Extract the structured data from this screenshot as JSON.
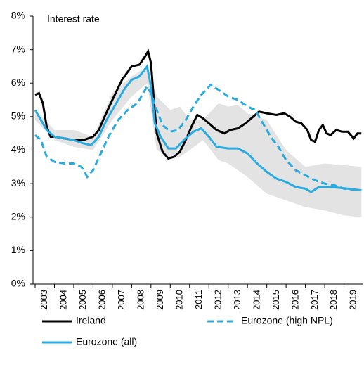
{
  "chart_data": {
    "type": "line",
    "annotation": "Interest rate",
    "xlim": [
      2003,
      2020
    ],
    "xticks": [
      2003,
      2004,
      2005,
      2006,
      2007,
      2008,
      2009,
      2010,
      2011,
      2012,
      2013,
      2014,
      2015,
      2016,
      2017,
      2018,
      2019
    ],
    "ylim": [
      0,
      8
    ],
    "yticks": [
      {
        "value": 0,
        "label": "0%"
      },
      {
        "value": 1,
        "label": "1%"
      },
      {
        "value": 2,
        "label": "2%"
      },
      {
        "value": 3,
        "label": "3%"
      },
      {
        "value": 4,
        "label": "4%"
      },
      {
        "value": 5,
        "label": "5%"
      },
      {
        "value": 6,
        "label": "6%"
      },
      {
        "value": 7,
        "label": "7%"
      },
      {
        "value": 8,
        "label": "8%"
      }
    ],
    "band": {
      "color": "#e3e3e3",
      "x": [
        2003,
        2004,
        2005,
        2006,
        2007,
        2008,
        2008.8,
        2009.3,
        2010,
        2010.5,
        2011,
        2011.7,
        2012.5,
        2013,
        2013.5,
        2014,
        2015,
        2016,
        2017,
        2018,
        2019,
        2019.9
      ],
      "upper": [
        5.2,
        4.6,
        4.6,
        4.4,
        5.7,
        6.2,
        6.5,
        5.6,
        5.2,
        5.3,
        4.9,
        4.9,
        5.4,
        5.3,
        5.35,
        5.1,
        4.9,
        4.0,
        3.5,
        3.6,
        3.55,
        3.5
      ],
      "lower": [
        4.9,
        4.3,
        4.1,
        4.0,
        4.9,
        5.6,
        6.0,
        4.0,
        3.8,
        3.8,
        4.0,
        4.3,
        3.7,
        3.6,
        3.4,
        3.2,
        2.7,
        2.5,
        2.3,
        2.2,
        2.05,
        2.0
      ]
    },
    "series": [
      {
        "name": "Ireland",
        "color": "#000000",
        "dash": false,
        "x": [
          2003.0,
          2003.2,
          2003.4,
          2003.6,
          2003.8,
          2004.0,
          2004.5,
          2005.0,
          2005.5,
          2006.0,
          2006.3,
          2006.6,
          2007.0,
          2007.5,
          2008.0,
          2008.4,
          2008.7,
          2008.85,
          2009.0,
          2009.15,
          2009.3,
          2009.6,
          2009.9,
          2010.2,
          2010.5,
          2010.8,
          2011.1,
          2011.4,
          2011.7,
          2012.0,
          2012.4,
          2012.8,
          2013.1,
          2013.5,
          2013.9,
          2014.3,
          2014.6,
          2015.0,
          2015.5,
          2015.9,
          2016.2,
          2016.5,
          2016.8,
          2017.1,
          2017.3,
          2017.5,
          2017.7,
          2017.9,
          2018.1,
          2018.3,
          2018.6,
          2018.9,
          2019.2,
          2019.5,
          2019.7,
          2019.9
        ],
        "values": [
          5.65,
          5.7,
          5.4,
          4.7,
          4.4,
          4.4,
          4.35,
          4.3,
          4.3,
          4.4,
          4.6,
          5.0,
          5.5,
          6.1,
          6.5,
          6.55,
          6.8,
          6.95,
          6.6,
          5.5,
          4.5,
          3.95,
          3.75,
          3.8,
          3.95,
          4.3,
          4.7,
          5.05,
          4.95,
          4.8,
          4.6,
          4.5,
          4.6,
          4.65,
          4.8,
          5.0,
          5.15,
          5.1,
          5.05,
          5.1,
          5.0,
          4.85,
          4.8,
          4.6,
          4.3,
          4.25,
          4.6,
          4.75,
          4.5,
          4.45,
          4.6,
          4.55,
          4.55,
          4.35,
          4.5,
          4.5
        ]
      },
      {
        "name": "Eurozone (high NPL)",
        "color": "#29abe2",
        "dash": true,
        "x": [
          2003.0,
          2003.3,
          2003.6,
          2004.0,
          2004.5,
          2005.0,
          2005.4,
          2005.7,
          2006.0,
          2006.4,
          2006.8,
          2007.3,
          2007.8,
          2008.3,
          2008.8,
          2009.0,
          2009.3,
          2009.6,
          2010.0,
          2010.4,
          2010.8,
          2011.2,
          2011.6,
          2012.1,
          2012.5,
          2013.0,
          2013.5,
          2014.0,
          2014.4,
          2014.8,
          2015.2,
          2015.6,
          2016.0,
          2016.5,
          2017.0,
          2017.5,
          2018.0,
          2018.5,
          2019.0,
          2019.9
        ],
        "values": [
          4.45,
          4.3,
          3.8,
          3.65,
          3.6,
          3.6,
          3.5,
          3.2,
          3.4,
          3.9,
          4.4,
          4.9,
          5.2,
          5.4,
          5.9,
          5.7,
          5.2,
          4.75,
          4.55,
          4.6,
          4.9,
          5.3,
          5.65,
          5.95,
          5.8,
          5.6,
          5.5,
          5.3,
          5.2,
          4.8,
          4.4,
          4.1,
          3.7,
          3.4,
          3.25,
          3.1,
          3.0,
          2.95,
          2.85,
          2.8
        ]
      },
      {
        "name": "Eurozone (all)",
        "color": "#29abe2",
        "dash": false,
        "x": [
          2003.0,
          2003.3,
          2003.6,
          2004.0,
          2004.5,
          2005.0,
          2005.5,
          2005.9,
          2006.3,
          2006.7,
          2007.1,
          2007.6,
          2008.0,
          2008.4,
          2008.8,
          2009.0,
          2009.2,
          2009.5,
          2009.9,
          2010.3,
          2010.7,
          2011.2,
          2011.6,
          2012.0,
          2012.4,
          2013.0,
          2013.5,
          2014.0,
          2014.5,
          2015.0,
          2015.5,
          2016.0,
          2016.5,
          2017.0,
          2017.3,
          2017.7,
          2018.2,
          2018.7,
          2019.2,
          2019.9
        ],
        "values": [
          5.2,
          4.9,
          4.6,
          4.4,
          4.35,
          4.3,
          4.2,
          4.15,
          4.4,
          4.9,
          5.3,
          5.8,
          6.1,
          6.2,
          6.5,
          5.9,
          4.8,
          4.4,
          4.05,
          4.05,
          4.3,
          4.55,
          4.65,
          4.4,
          4.1,
          4.05,
          4.05,
          3.9,
          3.6,
          3.35,
          3.15,
          3.05,
          2.9,
          2.85,
          2.75,
          2.9,
          2.9,
          2.88,
          2.85,
          2.8
        ]
      }
    ]
  }
}
